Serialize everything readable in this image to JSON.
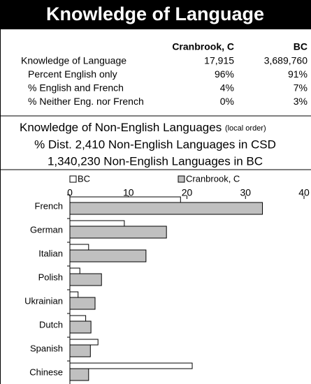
{
  "header": {
    "title": "Knowledge of Language"
  },
  "table": {
    "columns": [
      "Cranbrook, C",
      "BC"
    ],
    "rows": [
      [
        "Knowledge of Language",
        "17,915",
        "3,689,760"
      ],
      [
        "Percent English only",
        "96%",
        "91%"
      ],
      [
        "% English and French",
        "4%",
        "7%"
      ],
      [
        "% Neither Eng. nor French",
        "0%",
        "3%"
      ]
    ]
  },
  "notes": {
    "line1": "Knowledge of Non-English Languages",
    "line1_small": "(local order)",
    "line2": "% Dist. 2,410 Non-English Languages in CSD",
    "line3": "1,340,230 Non-English Languages in BC"
  },
  "chart_data": {
    "type": "bar",
    "orientation": "horizontal",
    "categories": [
      "French",
      "German",
      "Italian",
      "Polish",
      "Ukrainian",
      "Dutch",
      "Spanish",
      "Chinese"
    ],
    "series": [
      {
        "name": "BC",
        "color": "#ffffff",
        "values": [
          18.9,
          9.3,
          3.2,
          1.7,
          1.4,
          2.7,
          4.8,
          20.9
        ]
      },
      {
        "name": "Cranbrook, C",
        "color": "#c0c0c0",
        "values": [
          32.9,
          16.5,
          13.0,
          5.4,
          4.3,
          3.6,
          3.5,
          3.2
        ]
      }
    ],
    "xlim": [
      0,
      40
    ],
    "xticks": [
      0,
      10,
      20,
      30,
      40
    ],
    "legend": "top"
  }
}
